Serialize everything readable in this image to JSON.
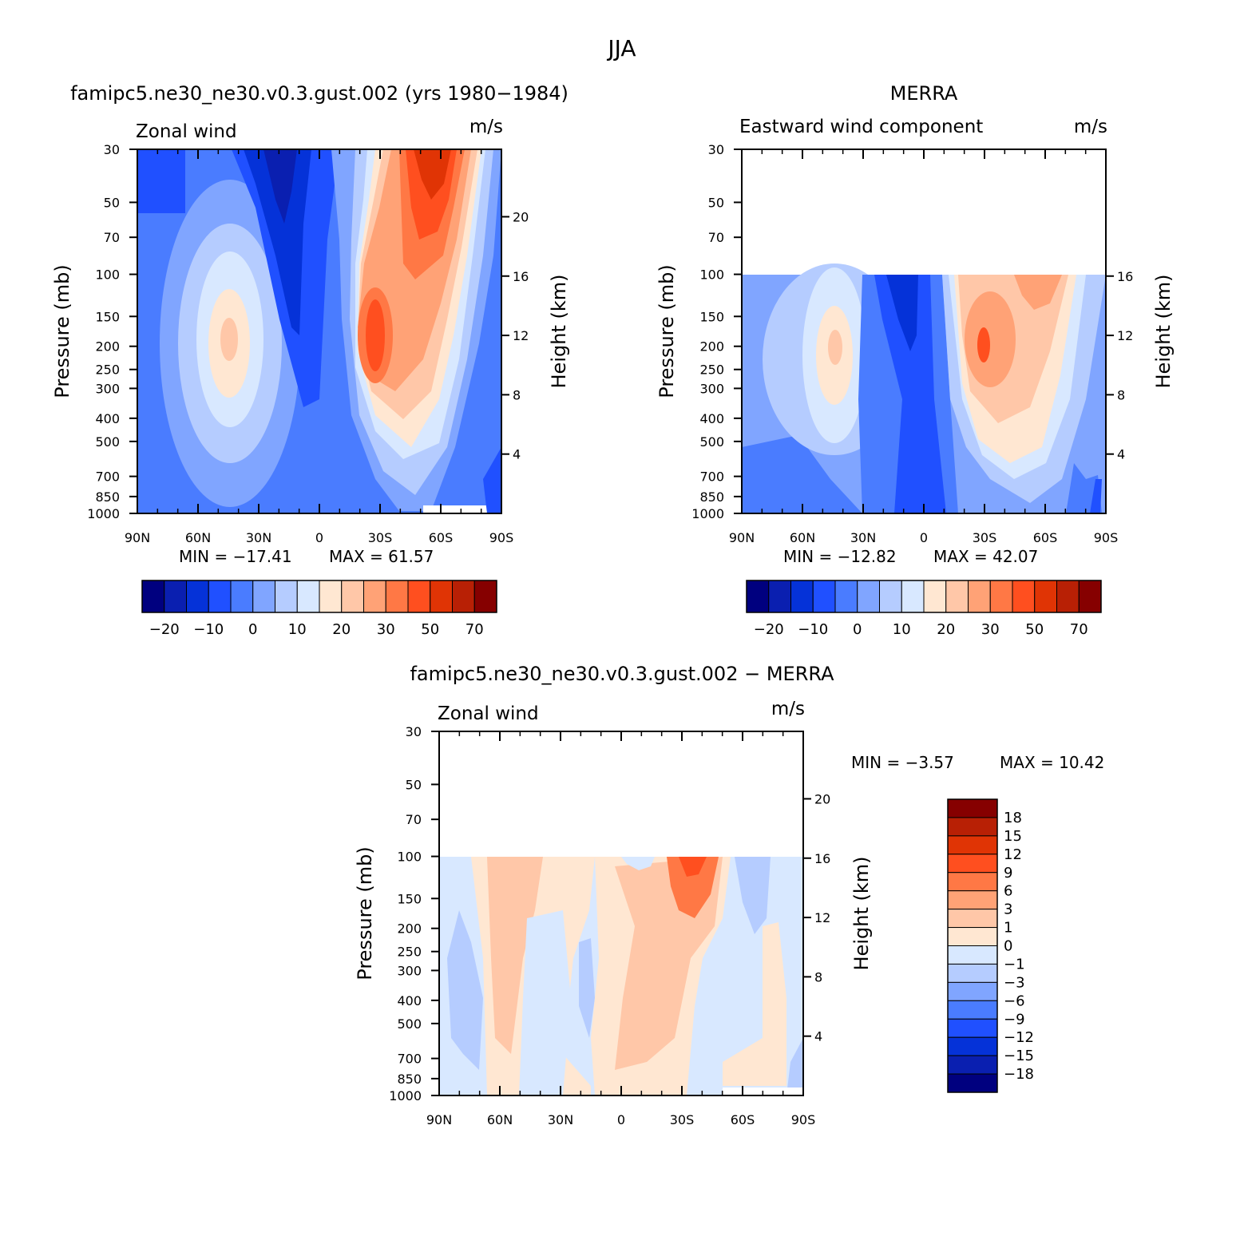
{
  "figure": {
    "title": "JJA"
  },
  "chart_data": [
    {
      "type": "heatmap",
      "panel": "model",
      "title": "famipc5.ne30_ne30.v0.3.gust.002 (yrs 1980−1984)",
      "variable": "Zonal wind",
      "units": "m/s",
      "xlabel": "",
      "ylabel": "Pressure (mb)",
      "ylabel_right": "Height (km)",
      "x_ticks": [
        "90N",
        "60N",
        "30N",
        "0",
        "30S",
        "60S",
        "90S"
      ],
      "y_ticks": [
        "30",
        "50",
        "70",
        "100",
        "150",
        "200",
        "250",
        "300",
        "400",
        "500",
        "700",
        "850",
        "1000"
      ],
      "y_ticks_right": [
        "20",
        "16",
        "12",
        "8",
        "4"
      ],
      "y_scale": "log",
      "ylim": [
        1000,
        30
      ],
      "min_label": "MIN = −17.41",
      "max_label": "MAX =   61.57",
      "min": -17.41,
      "max": 61.57,
      "colorbar_labels": [
        "−20",
        "−10",
        "0",
        "10",
        "20",
        "30",
        "50",
        "70"
      ],
      "data_top_pressure": 30
    },
    {
      "type": "heatmap",
      "panel": "obs",
      "title": "MERRA",
      "variable": "Eastward wind component",
      "units": "m/s",
      "xlabel": "",
      "ylabel": "Pressure (mb)",
      "ylabel_right": "Height (km)",
      "x_ticks": [
        "90N",
        "60N",
        "30N",
        "0",
        "30S",
        "60S",
        "90S"
      ],
      "y_ticks": [
        "30",
        "50",
        "70",
        "100",
        "150",
        "200",
        "250",
        "300",
        "400",
        "500",
        "700",
        "850",
        "1000"
      ],
      "y_ticks_right": [
        "16",
        "12",
        "8",
        "4"
      ],
      "y_scale": "log",
      "ylim": [
        1000,
        30
      ],
      "min_label": "MIN = −12.82",
      "max_label": "MAX =   42.07",
      "min": -12.82,
      "max": 42.07,
      "colorbar_labels": [
        "−20",
        "−10",
        "0",
        "10",
        "20",
        "30",
        "50",
        "70"
      ],
      "data_top_pressure": 100
    },
    {
      "type": "heatmap",
      "panel": "diff",
      "title": "famipc5.ne30_ne30.v0.3.gust.002 − MERRA",
      "variable": "Zonal wind",
      "units": "m/s",
      "xlabel": "",
      "ylabel": "Pressure (mb)",
      "ylabel_right": "Height (km)",
      "x_ticks": [
        "90N",
        "60N",
        "30N",
        "0",
        "30S",
        "60S",
        "90S"
      ],
      "y_ticks": [
        "30",
        "50",
        "70",
        "100",
        "150",
        "200",
        "250",
        "300",
        "400",
        "500",
        "700",
        "850",
        "1000"
      ],
      "y_ticks_right": [
        "20",
        "16",
        "12",
        "8",
        "4"
      ],
      "y_scale": "log",
      "ylim": [
        1000,
        30
      ],
      "min_label": "MIN =   −3.57",
      "max_label": "MAX =   10.42",
      "min": -3.57,
      "max": 10.42,
      "colorbar_labels": [
        "18",
        "15",
        "12",
        "9",
        "6",
        "3",
        "1",
        "0",
        "−1",
        "−3",
        "−6",
        "−9",
        "−12",
        "−15",
        "−18"
      ],
      "data_top_pressure": 100
    }
  ],
  "colors": {
    "main_scale": [
      "#00007f",
      "#0a1fb0",
      "#0532d8",
      "#2050ff",
      "#4a7cff",
      "#80a5ff",
      "#b5ccff",
      "#d8e8ff",
      "#ffe7d2",
      "#ffc7a8",
      "#ffa276",
      "#ff7845",
      "#ff4f1f",
      "#e03405",
      "#b82005",
      "#860000"
    ],
    "diff_scale": [
      "#860000",
      "#b82005",
      "#e03405",
      "#ff4f1f",
      "#ff7845",
      "#ffa276",
      "#ffc7a8",
      "#ffe7d2",
      "#d8e8ff",
      "#b5ccff",
      "#80a5ff",
      "#4a7cff",
      "#2050ff",
      "#0532d8",
      "#0a1fb0",
      "#00007f"
    ]
  }
}
